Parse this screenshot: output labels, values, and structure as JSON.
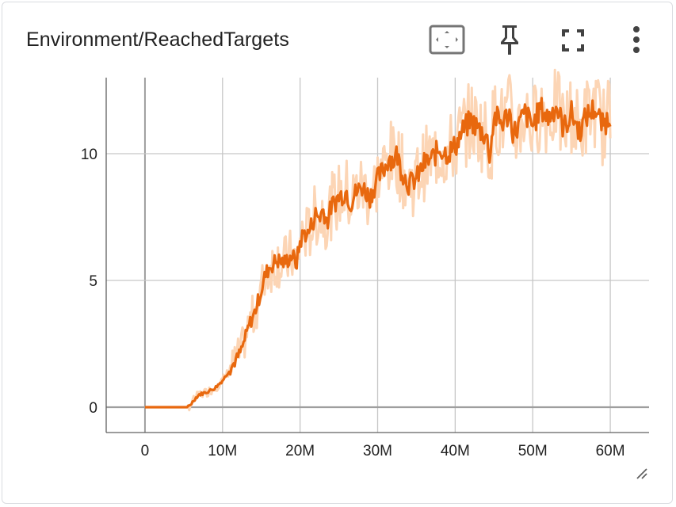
{
  "card": {
    "title": "Environment/ReachedTargets"
  },
  "toolbar": {
    "icons": [
      "fit-domain-icon",
      "pin-icon",
      "fullscreen-icon",
      "more-vert-icon"
    ]
  },
  "colors": {
    "main_line": "#e8680e",
    "raw_line": "#fcd5b5",
    "grid": "#c6c6c6",
    "zero_axis": "#9e9e9e",
    "text": "#212121"
  },
  "chart_data": {
    "type": "line",
    "title": "Environment/ReachedTargets",
    "xlabel": "",
    "ylabel": "",
    "xlim": [
      -5000000,
      65000000
    ],
    "ylim": [
      -1,
      13
    ],
    "x_ticks": [
      0,
      10000000,
      20000000,
      30000000,
      40000000,
      50000000,
      60000000
    ],
    "x_tick_labels": [
      "0",
      "10M",
      "20M",
      "30M",
      "40M",
      "50M",
      "60M"
    ],
    "y_ticks": [
      0,
      5,
      10
    ],
    "y_tick_labels": [
      "0",
      "5",
      "10"
    ],
    "grid": true,
    "series": [
      {
        "role": "smoothed",
        "x": [
          0,
          2000000,
          4000000,
          5500000,
          6000000,
          6500000,
          7000000,
          8000000,
          9000000,
          10000000,
          11000000,
          12000000,
          12500000,
          13000000,
          13500000,
          14000000,
          14500000,
          15000000,
          15500000,
          16000000,
          17000000,
          18000000,
          19000000,
          19500000,
          20000000,
          20500000,
          21000000,
          21500000,
          22000000,
          22500000,
          23000000,
          23500000,
          24000000,
          25000000,
          26000000,
          26500000,
          27000000,
          28000000,
          29000000,
          30000000,
          31000000,
          31500000,
          32000000,
          32500000,
          33000000,
          34000000,
          35000000,
          36000000,
          37000000,
          38000000,
          39000000,
          40000000,
          41000000,
          42000000,
          43000000,
          44000000,
          44500000,
          45000000,
          46000000,
          47000000,
          47500000,
          48000000,
          49000000,
          50000000,
          51000000,
          52000000,
          53000000,
          54000000,
          55000000,
          56000000,
          57000000,
          58000000,
          59000000,
          60000000
        ],
        "y": [
          0,
          0,
          0,
          0,
          0.15,
          0.35,
          0.5,
          0.6,
          0.75,
          1.05,
          1.5,
          2.0,
          2.3,
          2.8,
          3.3,
          3.6,
          4.1,
          4.6,
          5.2,
          5.5,
          5.8,
          5.7,
          6.0,
          5.6,
          6.5,
          6.9,
          6.8,
          7.2,
          7.6,
          7.5,
          7.8,
          7.3,
          7.9,
          8.3,
          8.5,
          8.0,
          8.4,
          8.7,
          8.3,
          9.0,
          9.5,
          9.9,
          9.7,
          10.0,
          9.4,
          8.8,
          9.0,
          9.6,
          9.8,
          10.2,
          10.0,
          10.3,
          10.9,
          11.3,
          11.0,
          10.7,
          9.9,
          11.5,
          11.2,
          11.6,
          10.8,
          11.0,
          11.6,
          11.1,
          11.8,
          11.4,
          11.9,
          11.0,
          11.6,
          10.9,
          11.5,
          11.8,
          11.1,
          11.5
        ]
      }
    ]
  }
}
